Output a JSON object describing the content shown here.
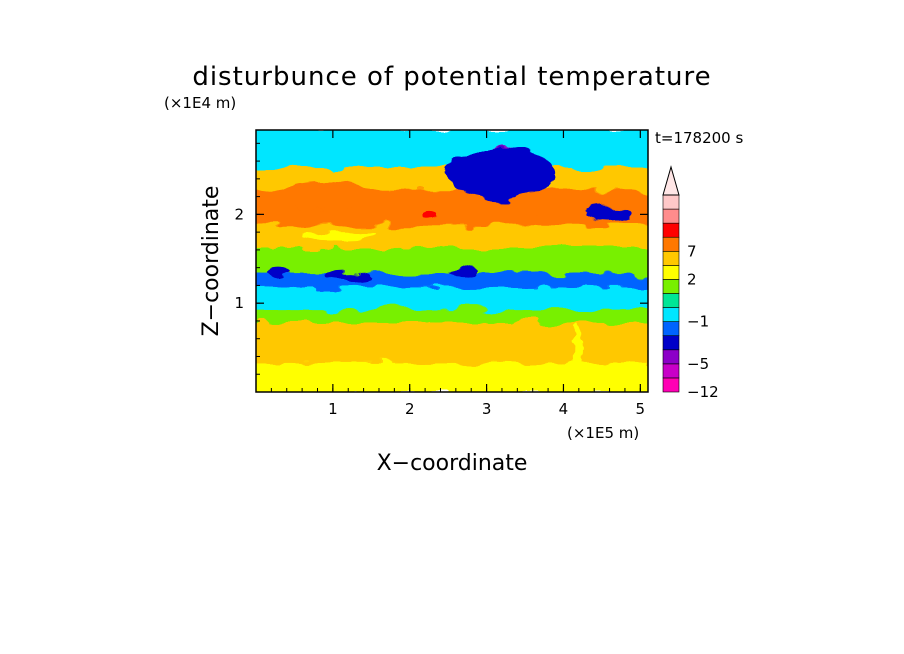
{
  "chart_data": {
    "type": "heatmap",
    "title": "disturbunce of potential temperature",
    "time_label": "t=178200 s",
    "xlabel": "X−coordinate",
    "ylabel": "Z−coordinate",
    "x_unit": "(×1E5 m)",
    "y_unit": "(×1E4 m)",
    "xlim": [
      0,
      5.1
    ],
    "ylim": [
      0,
      2.95
    ],
    "xticks": [
      {
        "value": 1,
        "label": "1"
      },
      {
        "value": 2,
        "label": "2"
      },
      {
        "value": 3,
        "label": "3"
      },
      {
        "value": 4,
        "label": "4"
      },
      {
        "value": 5,
        "label": "5"
      }
    ],
    "yticks": [
      {
        "value": 1,
        "label": "1"
      },
      {
        "value": 2,
        "label": "2"
      }
    ],
    "colorbar": {
      "levels": [
        {
          "color": "#ff00b4",
          "label": "−12"
        },
        {
          "color": "#c800c8",
          "label": ""
        },
        {
          "color": "#8c00c8",
          "label": "−5"
        },
        {
          "color": "#0000c8",
          "label": ""
        },
        {
          "color": "#0064ff",
          "label": ""
        },
        {
          "color": "#00e6ff",
          "label": "−1"
        },
        {
          "color": "#00e696",
          "label": ""
        },
        {
          "color": "#78f000",
          "label": ""
        },
        {
          "color": "#ffff00",
          "label": "2"
        },
        {
          "color": "#ffc800",
          "label": ""
        },
        {
          "color": "#ff7800",
          "label": "7"
        },
        {
          "color": "#ff0000",
          "label": ""
        },
        {
          "color": "#ff8c8c",
          "label": ""
        },
        {
          "color": "#ffc8c8",
          "label": ""
        }
      ],
      "extend": "max"
    },
    "field_bands": [
      {
        "z": [
          0.0,
          0.35
        ],
        "level": 8
      },
      {
        "z": [
          0.35,
          0.8
        ],
        "level": 9
      },
      {
        "z": [
          0.8,
          0.95
        ],
        "level": 7
      },
      {
        "z": [
          0.95,
          1.2
        ],
        "level": 5
      },
      {
        "z": [
          1.2,
          1.35
        ],
        "level": 4
      },
      {
        "z": [
          1.35,
          1.65
        ],
        "level": 7
      },
      {
        "z": [
          1.65,
          1.9
        ],
        "level": 9
      },
      {
        "z": [
          1.9,
          2.3
        ],
        "level": 10
      },
      {
        "z": [
          2.3,
          2.55
        ],
        "level": 9
      },
      {
        "z": [
          2.55,
          2.95
        ],
        "level": 5
      }
    ],
    "field_features": [
      {
        "x": 2.25,
        "z": 2.0,
        "rx": 0.1,
        "rz": 0.04,
        "level": 11
      },
      {
        "x": 3.2,
        "z": 2.6,
        "rx": 0.35,
        "rz": 0.16,
        "level": 2
      },
      {
        "x": 3.2,
        "z": 2.45,
        "rx": 0.7,
        "rz": 0.3,
        "level": 3
      },
      {
        "x": 1.2,
        "z": 1.3,
        "rx": 0.3,
        "rz": 0.05,
        "level": 3
      },
      {
        "x": 0.3,
        "z": 1.35,
        "rx": 0.15,
        "rz": 0.05,
        "level": 3
      },
      {
        "x": 2.7,
        "z": 1.35,
        "rx": 0.2,
        "rz": 0.04,
        "level": 3
      },
      {
        "x": 3.6,
        "z": 2.1,
        "rx": 0.35,
        "rz": 0.15,
        "level": 10
      },
      {
        "x": 0.9,
        "z": 2.2,
        "rx": 0.6,
        "rz": 0.16,
        "level": 10
      },
      {
        "x": 1.1,
        "z": 1.75,
        "rx": 0.5,
        "rz": 0.05,
        "level": 8
      },
      {
        "x": 4.2,
        "z": 0.45,
        "rx": 0.06,
        "rz": 0.3,
        "level": 8
      },
      {
        "x": 4.6,
        "z": 2.0,
        "rx": 0.3,
        "rz": 0.08,
        "level": 3
      }
    ]
  }
}
